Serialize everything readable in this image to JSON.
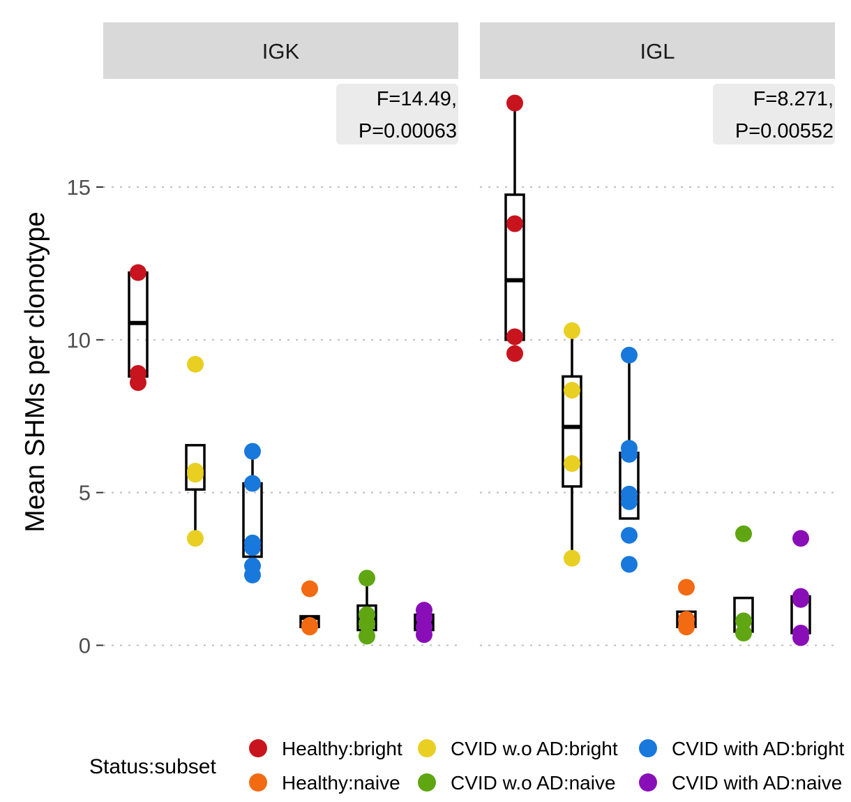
{
  "chart_data": {
    "type": "boxplot-with-points",
    "ylabel": "Mean SHMs per clonotype",
    "ylim": [
      -2.0,
      18.2
    ],
    "yticks": [
      0,
      5,
      10,
      15
    ],
    "grid": "dotted horizontal major",
    "categories": [
      "Healthy:bright",
      "CVID w.o AD:bright",
      "CVID with AD:bright",
      "Healthy:naive",
      "CVID w.o AD:naive",
      "CVID with AD:naive"
    ],
    "colors": {
      "Healthy:bright": "#C8141E",
      "CVID w.o AD:bright": "#E8CF22",
      "CVID with AD:bright": "#1878DC",
      "Healthy:naive": "#F26A12",
      "CVID w.o AD:naive": "#5FA612",
      "CVID with AD:naive": "#8A0EB8"
    },
    "legend": {
      "title": "Status:subset",
      "position": "bottom",
      "items": [
        "Healthy:bright",
        "Healthy:naive",
        "CVID w.o AD:bright",
        "CVID w.o AD:naive",
        "CVID with AD:bright",
        "CVID with AD:naive"
      ]
    },
    "panels": [
      {
        "label": "IGK",
        "annotation": [
          "F=14.49,",
          "P=0.00063"
        ],
        "groups": [
          {
            "name": "Healthy:bright",
            "points": [
              12.2,
              8.9,
              8.6
            ],
            "box": {
              "lower": 8.8,
              "q1": 8.8,
              "median": 10.55,
              "q3": 12.2,
              "upper": 12.2
            }
          },
          {
            "name": "CVID w.o AD:bright",
            "points": [
              9.2,
              5.7,
              5.6,
              3.5
            ],
            "box": {
              "lower": 3.5,
              "q1": 5.1,
              "median": 5.65,
              "q3": 6.55,
              "upper": 6.55
            }
          },
          {
            "name": "CVID with AD:bright",
            "points": [
              6.35,
              5.3,
              3.35,
              3.2,
              2.6,
              2.3
            ],
            "box": {
              "lower": 2.9,
              "q1": 2.9,
              "median": 3.25,
              "q3": 5.3,
              "upper": 6.35
            }
          },
          {
            "name": "Healthy:naive",
            "points": [
              1.85,
              0.65,
              0.6
            ],
            "box": {
              "lower": 0.6,
              "q1": 0.6,
              "median": 0.9,
              "q3": 0.95,
              "upper": 0.95
            }
          },
          {
            "name": "CVID w.o AD:naive",
            "points": [
              2.2,
              1.0,
              0.7,
              0.3
            ],
            "box": {
              "lower": 0.5,
              "q1": 0.5,
              "median": 0.9,
              "q3": 1.3,
              "upper": 2.2
            }
          },
          {
            "name": "CVID with AD:naive",
            "points": [
              1.15,
              0.9,
              0.6,
              0.35
            ],
            "box": {
              "lower": 0.5,
              "q1": 0.5,
              "median": 0.75,
              "q3": 1.0,
              "upper": 1.0
            }
          }
        ]
      },
      {
        "label": "IGL",
        "annotation": [
          "F=8.271,",
          "P=0.00552"
        ],
        "groups": [
          {
            "name": "Healthy:bright",
            "points": [
              17.75,
              13.8,
              10.1,
              9.55
            ],
            "box": {
              "lower": 10.0,
              "q1": 10.0,
              "median": 11.95,
              "q3": 14.75,
              "upper": 17.75
            }
          },
          {
            "name": "CVID w.o AD:bright",
            "points": [
              10.3,
              8.35,
              5.95,
              2.85
            ],
            "box": {
              "lower": 2.85,
              "q1": 5.2,
              "median": 7.15,
              "q3": 8.8,
              "upper": 10.3
            }
          },
          {
            "name": "CVID with AD:bright",
            "points": [
              9.5,
              6.45,
              6.25,
              4.95,
              4.7,
              3.6,
              2.65
            ],
            "box": {
              "lower": 4.15,
              "q1": 4.15,
              "median": 4.95,
              "q3": 6.3,
              "upper": 9.5
            }
          },
          {
            "name": "Healthy:naive",
            "points": [
              1.9,
              0.85,
              0.6
            ],
            "box": {
              "lower": 0.6,
              "q1": 0.6,
              "median": 0.9,
              "q3": 1.1,
              "upper": 1.1
            }
          },
          {
            "name": "CVID w.o AD:naive",
            "points": [
              3.65,
              0.8,
              0.4
            ],
            "box": {
              "lower": 0.45,
              "q1": 0.45,
              "median": 0.8,
              "q3": 1.55,
              "upper": 1.55
            }
          },
          {
            "name": "CVID with AD:naive",
            "points": [
              3.5,
              1.6,
              1.5,
              0.4,
              0.25
            ],
            "box": {
              "lower": 0.4,
              "q1": 0.4,
              "median": 1.5,
              "q3": 1.6,
              "upper": 1.6
            }
          }
        ]
      }
    ]
  }
}
